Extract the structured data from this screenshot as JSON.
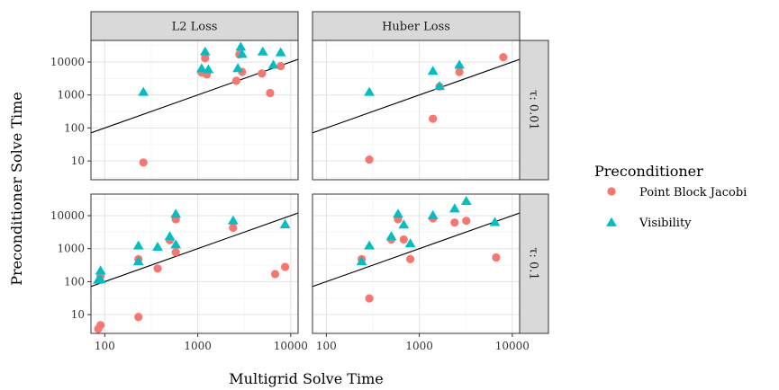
{
  "chart_data": {
    "type": "scatter",
    "xlabel": "Multigrid Solve Time",
    "ylabel": "Preconditioner Solve Time",
    "scale": "log10-log10",
    "xlim": [
      71,
      12000
    ],
    "ylim": [
      2.7,
      45000
    ],
    "x_ticks": [
      100,
      1000,
      10000
    ],
    "y_ticks": [
      10,
      100,
      1000,
      10000
    ],
    "grid": true,
    "legend_position": "right",
    "legend": {
      "title": "Preconditioner",
      "entries": [
        {
          "label": "Point Block Jacobi",
          "shape": "circle",
          "color": "#F8766D"
        },
        {
          "label": "Visibility",
          "shape": "triangle",
          "color": "#00BFC4"
        }
      ]
    },
    "col_facets": [
      "L2 Loss",
      "Huber Loss"
    ],
    "row_facets": [
      "τ: 0.01",
      "τ: 0.1"
    ],
    "reference_line": {
      "label": "y = x",
      "slope": 1,
      "intercept": 0
    },
    "panels": [
      {
        "col": "L2 Loss",
        "row": "τ: 0.01",
        "series": [
          {
            "name": "Point Block Jacobi",
            "points": [
              [
                260,
                9
              ],
              [
                1100,
                4800
              ],
              [
                1200,
                13000
              ],
              [
                1250,
                4200
              ],
              [
                2600,
                2700
              ],
              [
                2800,
                17000
              ],
              [
                3000,
                5000
              ],
              [
                4900,
                4500
              ],
              [
                6000,
                1150
              ],
              [
                7800,
                7500
              ]
            ]
          },
          {
            "name": "Visibility",
            "points": [
              [
                260,
                1200
              ],
              [
                1100,
                6200
              ],
              [
                1200,
                20000
              ],
              [
                1300,
                5800
              ],
              [
                2700,
                6300
              ],
              [
                2900,
                28000
              ],
              [
                3000,
                17000
              ],
              [
                5000,
                20000
              ],
              [
                6500,
                8000
              ],
              [
                7800,
                19000
              ]
            ]
          }
        ]
      },
      {
        "col": "Huber Loss",
        "row": "τ: 0.01",
        "series": [
          {
            "name": "Point Block Jacobi",
            "points": [
              [
                290,
                11
              ],
              [
                1400,
                190
              ],
              [
                1650,
                1800
              ],
              [
                2700,
                5000
              ],
              [
                8000,
                14000
              ]
            ]
          },
          {
            "name": "Visibility",
            "points": [
              [
                290,
                1200
              ],
              [
                1400,
                5200
              ],
              [
                1650,
                1800
              ],
              [
                2700,
                8000
              ]
            ]
          }
        ]
      },
      {
        "col": "L2 Loss",
        "row": "τ: 0.1",
        "series": [
          {
            "name": "Point Block Jacobi",
            "points": [
              [
                85,
                3.7
              ],
              [
                90,
                4.8
              ],
              [
                90,
                150
              ],
              [
                230,
                8.5
              ],
              [
                230,
                480
              ],
              [
                370,
                250
              ],
              [
                500,
                1800
              ],
              [
                580,
                780
              ],
              [
                580,
                7800
              ],
              [
                2400,
                4300
              ],
              [
                6800,
                170
              ],
              [
                8700,
                280
              ]
            ]
          },
          {
            "name": "Visibility",
            "points": [
              [
                85,
                110
              ],
              [
                90,
                210
              ],
              [
                90,
                115
              ],
              [
                230,
                1200
              ],
              [
                230,
                400
              ],
              [
                370,
                1100
              ],
              [
                500,
                2300
              ],
              [
                580,
                1300
              ],
              [
                580,
                11000
              ],
              [
                2400,
                6900
              ],
              [
                8700,
                5300
              ]
            ]
          }
        ]
      },
      {
        "col": "Huber Loss",
        "row": "τ: 0.1",
        "series": [
          {
            "name": "Point Block Jacobi",
            "points": [
              [
                240,
                480
              ],
              [
                290,
                31
              ],
              [
                500,
                1900
              ],
              [
                590,
                7800
              ],
              [
                680,
                1900
              ],
              [
                800,
                480
              ],
              [
                1400,
                8300
              ],
              [
                2400,
                6200
              ],
              [
                3200,
                7000
              ],
              [
                6700,
                540
              ]
            ]
          },
          {
            "name": "Visibility",
            "points": [
              [
                240,
                400
              ],
              [
                290,
                1200
              ],
              [
                500,
                2300
              ],
              [
                590,
                11000
              ],
              [
                680,
                5200
              ],
              [
                800,
                1400
              ],
              [
                1400,
                10000
              ],
              [
                2400,
                16000
              ],
              [
                3200,
                27000
              ],
              [
                6500,
                6200
              ]
            ]
          }
        ]
      }
    ]
  }
}
